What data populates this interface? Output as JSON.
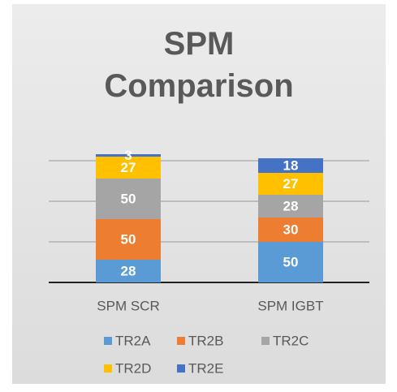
{
  "chart_data": {
    "type": "stacked_bar",
    "title": "SPM Comparison",
    "categories": [
      "SPM SCR",
      "SPM IGBT"
    ],
    "series": [
      {
        "name": "TR2A",
        "color": "#5b9bd5",
        "values": [
          28,
          50
        ]
      },
      {
        "name": "TR2B",
        "color": "#ed7d31",
        "values": [
          50,
          30
        ]
      },
      {
        "name": "TR2C",
        "color": "#a5a5a5",
        "values": [
          50,
          28
        ]
      },
      {
        "name": "TR2D",
        "color": "#ffc000",
        "values": [
          27,
          27
        ]
      },
      {
        "name": "TR2E",
        "color": "#4472c4",
        "values": [
          3,
          18
        ]
      }
    ],
    "ylim": [
      0,
      200
    ],
    "yticks": [
      0,
      50,
      100,
      150
    ],
    "grid": true,
    "legend": "bottom"
  }
}
